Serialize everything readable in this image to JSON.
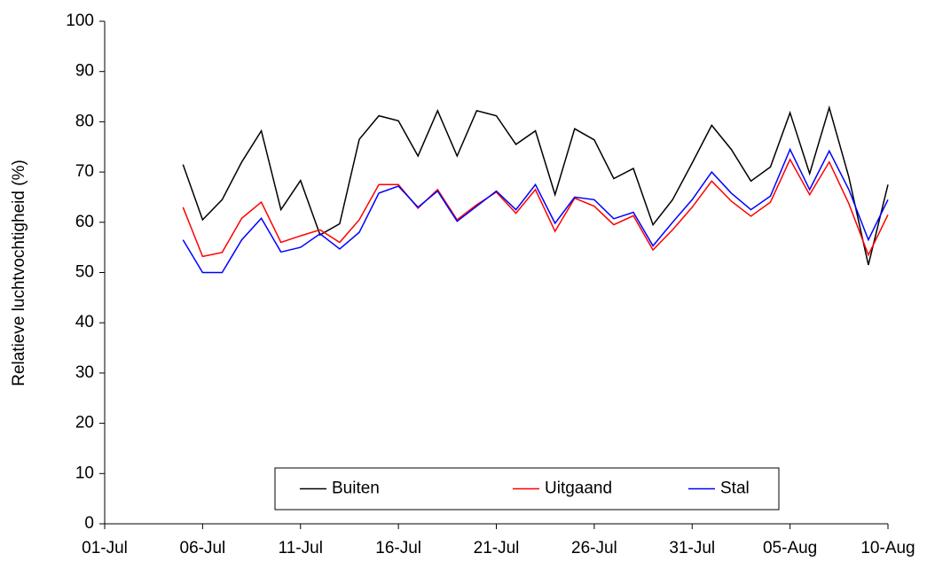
{
  "chart_data": {
    "type": "line",
    "y_label": "Relatieve luchtvochtigheid (%)",
    "categories": [
      "01-Jul",
      null,
      null,
      null,
      null,
      "06-Jul",
      null,
      null,
      null,
      null,
      "11-Jul",
      null,
      null,
      null,
      null,
      "16-Jul",
      null,
      null,
      null,
      null,
      "21-Jul",
      null,
      null,
      null,
      null,
      "26-Jul",
      null,
      null,
      null,
      null,
      "31-Jul",
      null,
      null,
      null,
      null,
      "05-Aug",
      null,
      null,
      null,
      null,
      "10-Aug"
    ],
    "series": [
      {
        "name": "Buiten",
        "color": "#000000",
        "values": [
          null,
          null,
          null,
          null,
          71.5,
          60.5,
          64.5,
          72,
          78.2,
          62.5,
          68.3,
          57.5,
          59.7,
          76.5,
          81.2,
          80.2,
          73.2,
          82.2,
          73.2,
          82.2,
          81.2,
          75.5,
          78.2,
          65.5,
          78.6,
          76.4,
          68.7,
          70.7,
          59.5,
          64.5,
          71.8,
          79.3,
          74.5,
          68.2,
          71,
          81.8,
          69.7,
          82.8,
          69,
          51.5,
          67.5
        ]
      },
      {
        "name": "Uitgaand",
        "color": "#ff0000",
        "values": [
          null,
          null,
          null,
          null,
          63,
          53.2,
          54,
          60.8,
          64,
          56,
          57.3,
          58.5,
          56,
          60.5,
          67.5,
          67.5,
          62.8,
          66.5,
          60.5,
          63.5,
          66,
          61.8,
          66.5,
          58.2,
          64.8,
          63.2,
          59.5,
          61.3,
          54.5,
          58.5,
          63,
          68.2,
          64.2,
          61.2,
          64,
          72.5,
          65.5,
          72,
          63.7,
          53.5,
          61.5
        ]
      },
      {
        "name": "Stal",
        "color": "#0000ff",
        "values": [
          null,
          null,
          null,
          null,
          56.5,
          50,
          50,
          56.5,
          60.8,
          54.1,
          55,
          57.7,
          54.7,
          58,
          65.8,
          67.2,
          63,
          66.2,
          60.2,
          63.2,
          66.2,
          62.5,
          67.5,
          59.8,
          65,
          64.5,
          60.7,
          62,
          55.3,
          60,
          64.5,
          70,
          65.8,
          62.5,
          65.2,
          74.5,
          66.5,
          74.2,
          66.5,
          56.5,
          64.5
        ]
      }
    ],
    "ylim": [
      0,
      100
    ],
    "yticks": [
      0,
      10,
      20,
      30,
      40,
      50,
      60,
      70,
      80,
      90,
      100
    ],
    "grid": false,
    "legend": "bottom"
  }
}
